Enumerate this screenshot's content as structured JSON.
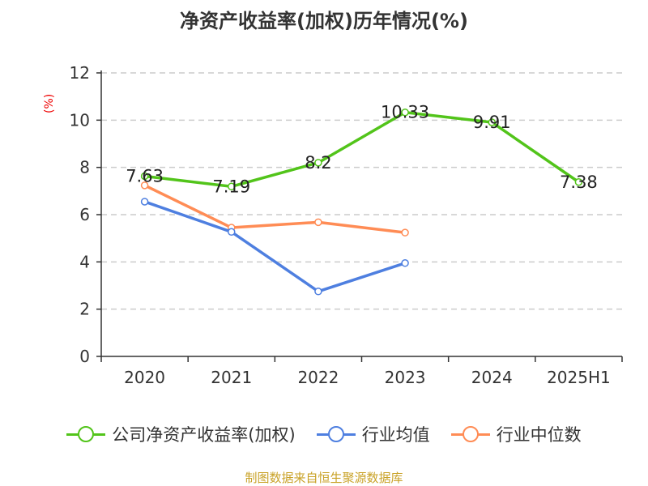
{
  "title": "净资产收益率(加权)历年情况(%)",
  "source": "制图数据来自恒生聚源数据库",
  "chart_data": {
    "type": "line",
    "title": "净资产收益率(加权)历年情况(%)",
    "ylabel": "(%)",
    "categories": [
      "2020",
      "2021",
      "2022",
      "2023",
      "2024",
      "2025H1"
    ],
    "ylim": [
      0,
      12
    ],
    "yticks": [
      0,
      2,
      4,
      6,
      8,
      10,
      12
    ],
    "grid": true,
    "legend_position": "bottom",
    "series": [
      {
        "name": "公司净资产收益率(加权)",
        "color": "#52c41a",
        "values": [
          7.63,
          7.19,
          8.2,
          10.33,
          9.91,
          7.38
        ],
        "labels": [
          "7.63",
          "7.19",
          "8.2",
          "10.33",
          "9.91",
          "7.38"
        ]
      },
      {
        "name": "行业均值",
        "color": "#4e7fe0",
        "values": [
          6.55,
          5.27,
          2.75,
          3.95,
          null,
          null
        ]
      },
      {
        "name": "行业中位数",
        "color": "#ff8c55",
        "values": [
          7.24,
          5.45,
          5.68,
          5.24,
          null,
          null
        ]
      }
    ]
  }
}
